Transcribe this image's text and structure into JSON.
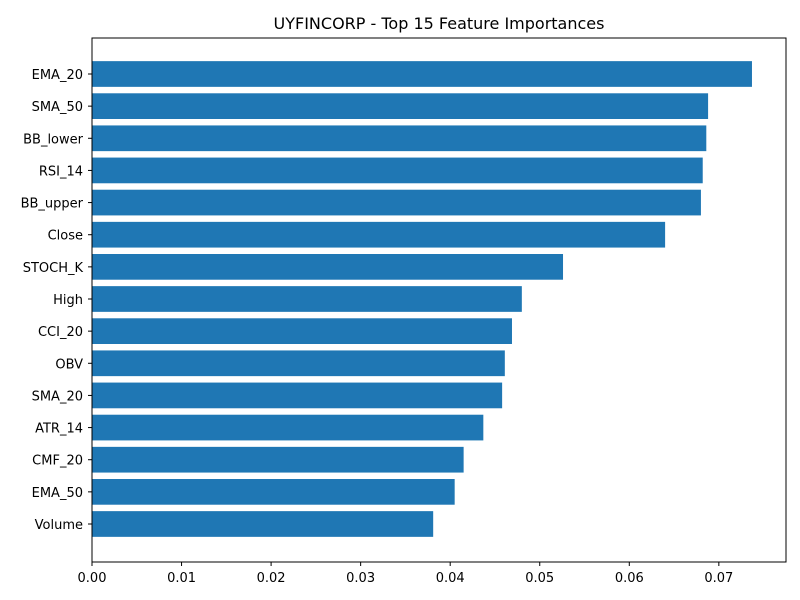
{
  "chart_data": {
    "type": "bar",
    "orientation": "horizontal",
    "title": "UYFINCORP - Top 15 Feature Importances",
    "xlabel": "",
    "ylabel": "",
    "xlim": [
      0,
      0.0775
    ],
    "x_ticks": [
      0.0,
      0.01,
      0.02,
      0.03,
      0.04,
      0.05,
      0.06,
      0.07
    ],
    "x_tick_labels": [
      "0.00",
      "0.01",
      "0.02",
      "0.03",
      "0.04",
      "0.05",
      "0.06",
      "0.07"
    ],
    "categories": [
      "EMA_20",
      "SMA_50",
      "BB_lower",
      "RSI_14",
      "BB_upper",
      "Close",
      "STOCH_K",
      "High",
      "CCI_20",
      "OBV",
      "SMA_20",
      "ATR_14",
      "CMF_20",
      "EMA_50",
      "Volume"
    ],
    "values": [
      0.0737,
      0.0688,
      0.0686,
      0.0682,
      0.068,
      0.064,
      0.0526,
      0.048,
      0.0469,
      0.0461,
      0.0458,
      0.0437,
      0.0415,
      0.0405,
      0.0381
    ],
    "bar_color": "#1f77b4",
    "grid": false,
    "legend": "none"
  }
}
